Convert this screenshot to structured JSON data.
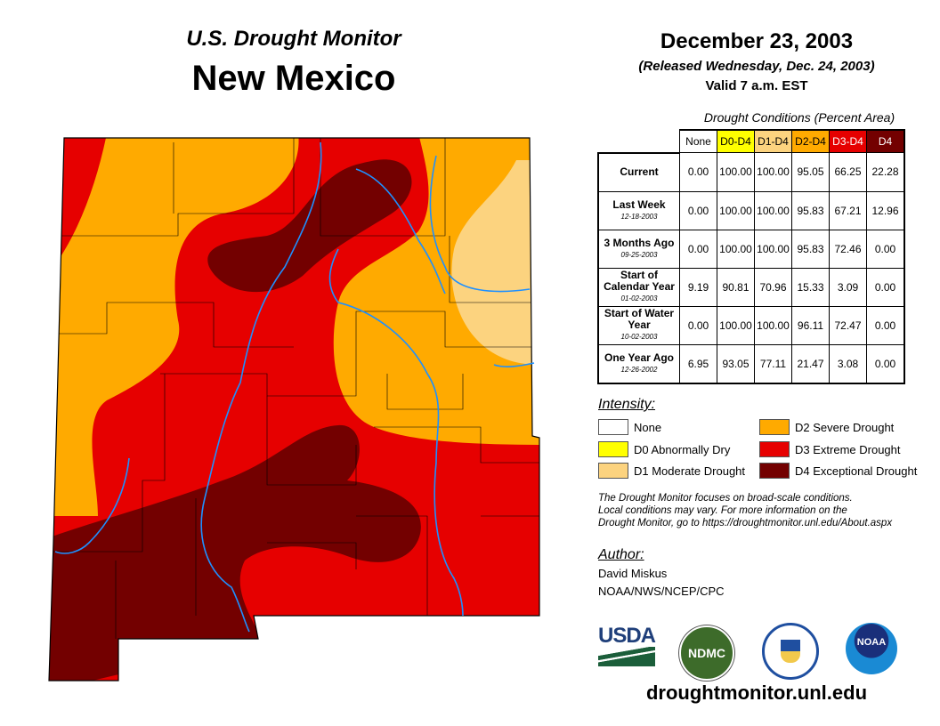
{
  "title": "U.S. Drought Monitor",
  "state": "New Mexico",
  "date": "December 23, 2003",
  "released": "(Released Wednesday, Dec. 24, 2003)",
  "valid": "Valid 7 a.m. EST",
  "table": {
    "caption": "Drought Conditions (Percent Area)",
    "headers": [
      "None",
      "D0-D4",
      "D1-D4",
      "D2-D4",
      "D3-D4",
      "D4"
    ],
    "rows": [
      {
        "label": "Current",
        "date": "",
        "values": [
          "0.00",
          "100.00",
          "100.00",
          "95.05",
          "66.25",
          "22.28"
        ]
      },
      {
        "label": "Last Week",
        "date": "12-18-2003",
        "values": [
          "0.00",
          "100.00",
          "100.00",
          "95.83",
          "67.21",
          "12.96"
        ]
      },
      {
        "label": "3 Months Ago",
        "date": "09-25-2003",
        "values": [
          "0.00",
          "100.00",
          "100.00",
          "95.83",
          "72.46",
          "0.00"
        ]
      },
      {
        "label": "Start of Calendar Year",
        "date": "01-02-2003",
        "values": [
          "9.19",
          "90.81",
          "70.96",
          "15.33",
          "3.09",
          "0.00"
        ]
      },
      {
        "label": "Start of Water Year",
        "date": "10-02-2003",
        "values": [
          "0.00",
          "100.00",
          "100.00",
          "96.11",
          "72.47",
          "0.00"
        ]
      },
      {
        "label": "One Year Ago",
        "date": "12-26-2002",
        "values": [
          "6.95",
          "93.05",
          "77.11",
          "21.47",
          "3.08",
          "0.00"
        ]
      }
    ]
  },
  "legend": {
    "title": "Intensity:",
    "items": [
      {
        "label": "None",
        "color": "#ffffff"
      },
      {
        "label": "D0 Abnormally Dry",
        "color": "#ffff00"
      },
      {
        "label": "D1 Moderate Drought",
        "color": "#fcd37f"
      },
      {
        "label": "D2 Severe Drought",
        "color": "#ffaa00"
      },
      {
        "label": "D3 Extreme Drought",
        "color": "#e60000"
      },
      {
        "label": "D4 Exceptional Drought",
        "color": "#730000"
      }
    ]
  },
  "note": [
    "The Drought Monitor focuses on broad-scale conditions.",
    "Local conditions may vary. For more information on the",
    "Drought Monitor, go to https://droughtmonitor.unl.edu/About.aspx"
  ],
  "author": {
    "heading": "Author:",
    "name": "David Miskus",
    "org": "NOAA/NWS/NCEP/CPC"
  },
  "logos": [
    "USDA",
    "NDMC",
    "NOAA"
  ],
  "url": "droughtmonitor.unl.edu"
}
